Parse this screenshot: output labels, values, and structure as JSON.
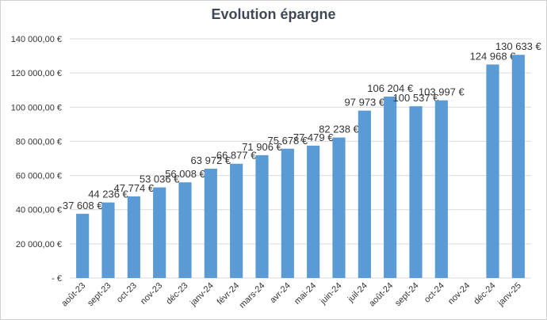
{
  "chart_data": {
    "type": "bar",
    "title": "Evolution épargne",
    "categories": [
      "août-23",
      "sept-23",
      "oct-23",
      "nov-23",
      "déc-23",
      "janv-24",
      "févr-24",
      "mars-24",
      "avr-24",
      "mai-24",
      "juin-24",
      "juil-24",
      "août-24",
      "sept-24",
      "oct-24",
      "nov-24",
      "déc-24",
      "janv-25"
    ],
    "values": [
      37608,
      44236,
      47774,
      53036,
      56008,
      63972,
      66877,
      71906,
      75678,
      77479,
      82238,
      97973,
      106204,
      100537,
      103997,
      null,
      124968,
      130633
    ],
    "data_labels": [
      "37 608 €",
      "44 236 €",
      "47 774 €",
      "53 036 €",
      "56 008 €",
      "63 972 €",
      "66 877 €",
      "71 906 €",
      "75 678 €",
      "77 479 €",
      "82 238 €",
      "97 973 €",
      "106 204 €",
      "100 537 €",
      "103 997 €",
      "",
      "124 968 €",
      "130 633 €"
    ],
    "ylim": [
      0,
      140000
    ],
    "yticks": [
      0,
      20000,
      40000,
      60000,
      80000,
      100000,
      120000,
      140000
    ],
    "ytick_labels": [
      "-   €",
      "20 000,00 €",
      "40 000,00 €",
      "60 000,00 €",
      "80 000,00 €",
      "100 000,00 €",
      "120 000,00 €",
      "140 000,00 €"
    ],
    "grid": true,
    "bar_color": "#5b9bd5",
    "grid_color": "#d9d9d9"
  }
}
